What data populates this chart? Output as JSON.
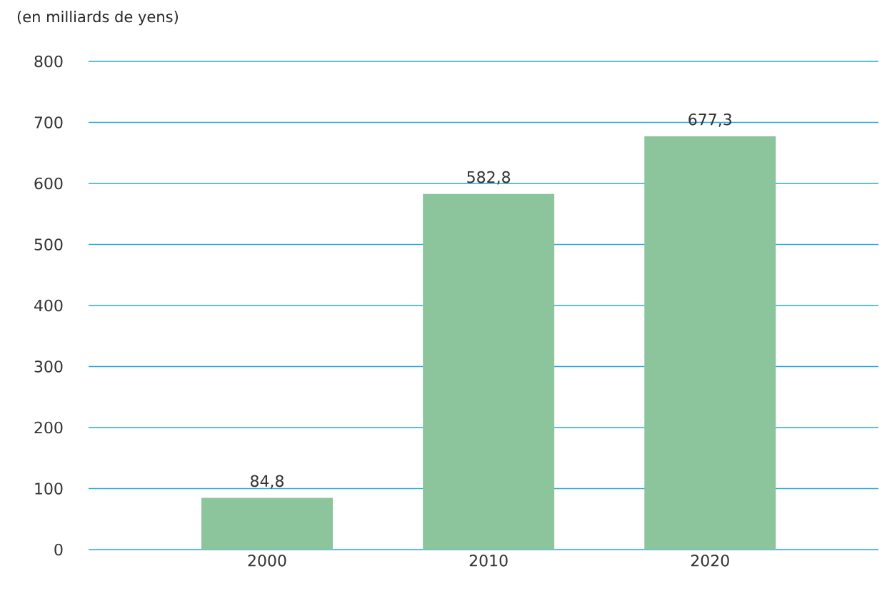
{
  "chart_data": {
    "type": "bar",
    "ylabel": "(en milliards de yens)",
    "categories": [
      "2000",
      "2010",
      "2020"
    ],
    "values": [
      84.8,
      582.8,
      677.3
    ],
    "value_labels": [
      "84,8",
      "582,8",
      "677,3"
    ],
    "color": "#8cc59b",
    "ylim": [
      0,
      800
    ],
    "yticks": [
      0,
      100,
      200,
      300,
      400,
      500,
      600,
      700,
      800
    ],
    "grid": "y"
  }
}
